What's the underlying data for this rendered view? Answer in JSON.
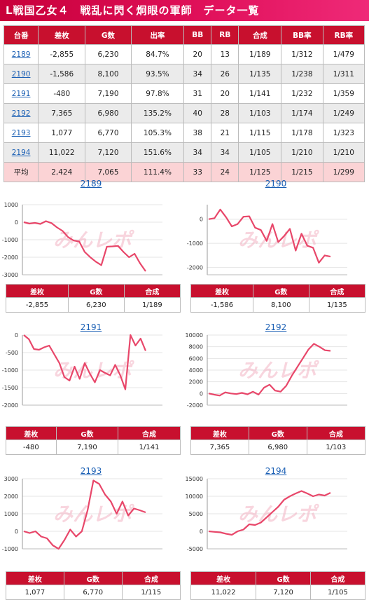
{
  "title": "L戦国乙女４　戦乱に閃く炯眼の軍師　データ一覧",
  "table": {
    "headers": [
      "台番",
      "差枚",
      "G数",
      "出率",
      "BB",
      "RB",
      "合成",
      "BB率",
      "RB率"
    ],
    "rows": [
      [
        "2189",
        "-2,855",
        "6,230",
        "84.7%",
        "20",
        "13",
        "1/189",
        "1/312",
        "1/479"
      ],
      [
        "2190",
        "-1,586",
        "8,100",
        "93.5%",
        "34",
        "26",
        "1/135",
        "1/238",
        "1/311"
      ],
      [
        "2191",
        "-480",
        "7,190",
        "97.8%",
        "31",
        "20",
        "1/141",
        "1/232",
        "1/359"
      ],
      [
        "2192",
        "7,365",
        "6,980",
        "135.2%",
        "40",
        "28",
        "1/103",
        "1/174",
        "1/249"
      ],
      [
        "2193",
        "1,077",
        "6,770",
        "105.3%",
        "38",
        "21",
        "1/115",
        "1/178",
        "1/323"
      ],
      [
        "2194",
        "11,022",
        "7,120",
        "151.6%",
        "34",
        "34",
        "1/105",
        "1/210",
        "1/210"
      ]
    ],
    "average": [
      "平均",
      "2,424",
      "7,065",
      "111.4%",
      "33",
      "24",
      "1/125",
      "1/215",
      "1/299"
    ]
  },
  "watermark": "みんレポ",
  "line_color": "#e8476a",
  "stats_headers": [
    "差枚",
    "G数",
    "合成"
  ],
  "chart_data": [
    {
      "type": "line",
      "title": "2189",
      "yticks": [
        "1000",
        "0",
        "-1000",
        "-2000",
        "-3000"
      ],
      "ylim": [
        -3000,
        1000
      ],
      "y": [
        0,
        -80,
        -40,
        -100,
        60,
        -50,
        -300,
        -500,
        -850,
        -1050,
        -1100,
        -1700,
        -2000,
        -2250,
        -2450,
        -1400,
        -1380,
        -1350,
        -1700,
        -2000,
        -1800,
        -2350,
        -2800
      ],
      "stats": {
        "sa": "-2,855",
        "g": "6,230",
        "gousei": "1/189"
      }
    },
    {
      "type": "line",
      "title": "2190",
      "yticks": [
        "0",
        "-1000",
        "-2000"
      ],
      "ylim": [
        -2300,
        600
      ],
      "y": [
        0,
        40,
        400,
        80,
        -300,
        -200,
        100,
        120,
        -350,
        -450,
        -900,
        -200,
        -950,
        -700,
        -400,
        -1300,
        -600,
        -1100,
        -1180,
        -1800,
        -1500,
        -1550
      ],
      "stats": {
        "sa": "-1,586",
        "g": "8,100",
        "gousei": "1/135"
      }
    },
    {
      "type": "line",
      "title": "2191",
      "yticks": [
        "0",
        "-500",
        "-1000",
        "-1500",
        "-2000"
      ],
      "ylim": [
        -2000,
        0
      ],
      "y": [
        0,
        -120,
        -400,
        -420,
        -350,
        -300,
        -550,
        -800,
        -1200,
        -1300,
        -900,
        -1250,
        -800,
        -1100,
        -1350,
        -1000,
        -1080,
        -1150,
        -850,
        -1150,
        -1550,
        0,
        -300,
        -100,
        -450
      ],
      "stats": {
        "sa": "-480",
        "g": "7,190",
        "gousei": "1/141"
      }
    },
    {
      "type": "line",
      "title": "2192",
      "yticks": [
        "10000",
        "8000",
        "6000",
        "4000",
        "2000",
        "0",
        "-2000"
      ],
      "ylim": [
        -2000,
        10000
      ],
      "y": [
        0,
        -200,
        -350,
        200,
        0,
        -100,
        100,
        -150,
        300,
        -200,
        1000,
        1500,
        500,
        300,
        1300,
        3000,
        4500,
        6000,
        7500,
        8500,
        8000,
        7400,
        7300
      ],
      "stats": {
        "sa": "7,365",
        "g": "6,980",
        "gousei": "1/103"
      }
    },
    {
      "type": "line",
      "title": "2193",
      "yticks": [
        "3000",
        "2000",
        "1000",
        "0",
        "-1000"
      ],
      "ylim": [
        -1000,
        3000
      ],
      "y": [
        0,
        -100,
        0,
        -300,
        -400,
        -800,
        -1000,
        -500,
        100,
        -300,
        0,
        1200,
        2900,
        2700,
        2100,
        1700,
        1000,
        1700,
        900,
        1300,
        1200,
        1080
      ],
      "stats": {
        "sa": "1,077",
        "g": "6,770",
        "gousei": "1/115"
      }
    },
    {
      "type": "line",
      "title": "2194",
      "yticks": [
        "15000",
        "10000",
        "5000",
        "0",
        "-5000"
      ],
      "ylim": [
        -5000,
        15000
      ],
      "y": [
        0,
        -150,
        -300,
        -700,
        -1000,
        0,
        500,
        2000,
        1800,
        2500,
        4000,
        5500,
        7000,
        9000,
        10000,
        10800,
        11500,
        10800,
        10000,
        10500,
        10200,
        11000
      ],
      "stats": {
        "sa": "11,022",
        "g": "7,120",
        "gousei": "1/105"
      }
    }
  ]
}
